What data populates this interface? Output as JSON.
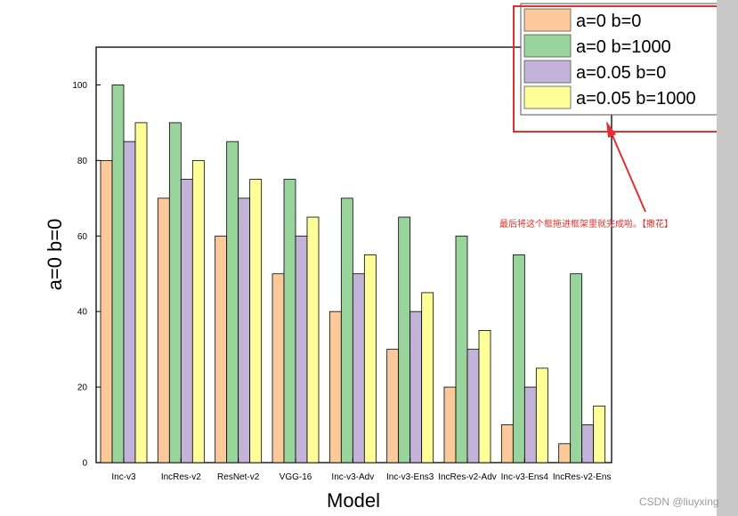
{
  "chart_data": {
    "type": "bar",
    "title": "",
    "xlabel": "Model",
    "ylabel": "a=0 b=0",
    "ylim": [
      0,
      110
    ],
    "yticks": [
      0,
      20,
      40,
      60,
      80,
      100
    ],
    "categories": [
      "Inc-v3",
      "IncRes-v2",
      "ResNet-v2",
      "VGG-16",
      "Inc-v3-Adv",
      "Inc-v3-Ens3",
      "IncRes-v2-Adv",
      "Inc-v3-Ens4",
      "IncRes-v2-Ens"
    ],
    "series": [
      {
        "name": "a=0 b=0",
        "color": "#fcc99b",
        "values": [
          80,
          70,
          60,
          50,
          40,
          30,
          20,
          10,
          5
        ]
      },
      {
        "name": "a=0 b=1000",
        "color": "#9ad49d",
        "values": [
          100,
          90,
          85,
          75,
          70,
          65,
          60,
          55,
          50
        ]
      },
      {
        "name": "a=0.05 b=0",
        "color": "#c3b3d8",
        "values": [
          85,
          75,
          70,
          60,
          50,
          40,
          30,
          20,
          10
        ]
      },
      {
        "name": "a=0.05 b=1000",
        "color": "#ffff99",
        "values": [
          90,
          80,
          75,
          65,
          55,
          45,
          35,
          25,
          15
        ]
      }
    ],
    "grid": false,
    "legend_position": "top-right"
  },
  "annotation": {
    "text": "最后将这个框拖进框架里就完成啦。【撒花】",
    "color": "#e0302a"
  },
  "watermark": "CSDN @liuyxing"
}
